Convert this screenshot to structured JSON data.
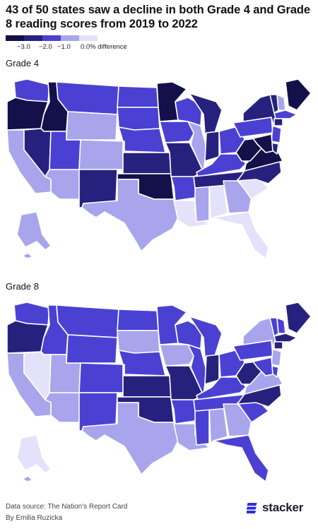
{
  "title": "43 of 50 states saw a decline in both Grade 4 and Grade 8 reading scores from 2019 to 2022",
  "legend": {
    "labels": [
      "−3.0",
      "−2.0",
      "−1.0",
      "0.0% difference"
    ],
    "colors": [
      "#14104a",
      "#27217e",
      "#4a41d3",
      "#a8a5ec",
      "#e4e2fa"
    ]
  },
  "panels": [
    {
      "label": "Grade 4",
      "colors": {
        "WA": "#4a41d3",
        "OR": "#14104a",
        "CA": "#a8a5ec",
        "ID": "#14104a",
        "NV": "#27217e",
        "AZ": "#a8a5ec",
        "UT": "#4a41d3",
        "MT": "#4a41d3",
        "WY": "#a8a5ec",
        "CO": "#a8a5ec",
        "NM": "#27217e",
        "ND": "#4a41d3",
        "SD": "#4a41d3",
        "NE": "#4a41d3",
        "KS": "#27217e",
        "OK": "#14104a",
        "TX": "#a8a5ec",
        "MN": "#14104a",
        "IA": "#4a41d3",
        "MO": "#27217e",
        "AR": "#4a41d3",
        "LA": "#e4e2fa",
        "WI": "#4a41d3",
        "IL": "#a8a5ec",
        "MS": "#a8a5ec",
        "AL": "#e4e2fa",
        "MI": "#27217e",
        "IN": "#27217e",
        "OH": "#4a41d3",
        "KY": "#4a41d3",
        "TN": "#27217e",
        "GA": "#a8a5ec",
        "FL": "#e4e2fa",
        "SC": "#e4e2fa",
        "NC": "#27217e",
        "VA": "#14104a",
        "WV": "#14104a",
        "PA": "#4a41d3",
        "NY": "#27217e",
        "ME": "#14104a",
        "VT": "#27217e",
        "NH": "#a8a5ec",
        "MA": "#4a41d3",
        "CT": "#27217e",
        "NJ": "#4a41d3",
        "DE": "#27217e",
        "MD": "#14104a",
        "AK": "#a8a5ec",
        "HI": "#a8a5ec"
      }
    },
    {
      "label": "Grade 8",
      "colors": {
        "WA": "#4a41d3",
        "OR": "#27217e",
        "CA": "#a8a5ec",
        "ID": "#4a41d3",
        "NV": "#e4e2fa",
        "AZ": "#a8a5ec",
        "UT": "#a8a5ec",
        "MT": "#4a41d3",
        "WY": "#4a41d3",
        "CO": "#4a41d3",
        "NM": "#4a41d3",
        "ND": "#4a41d3",
        "SD": "#a8a5ec",
        "NE": "#4a41d3",
        "KS": "#27217e",
        "OK": "#27217e",
        "TX": "#a8a5ec",
        "MN": "#4a41d3",
        "IA": "#a8a5ec",
        "MO": "#27217e",
        "AR": "#4a41d3",
        "LA": "#a8a5ec",
        "WI": "#4a41d3",
        "IL": "#4a41d3",
        "MS": "#4a41d3",
        "AL": "#a8a5ec",
        "MI": "#4a41d3",
        "IN": "#27217e",
        "OH": "#4a41d3",
        "KY": "#4a41d3",
        "TN": "#4a41d3",
        "GA": "#a8a5ec",
        "FL": "#4a41d3",
        "SC": "#4a41d3",
        "NC": "#27217e",
        "VA": "#a8a5ec",
        "WV": "#27217e",
        "PA": "#4a41d3",
        "NY": "#a8a5ec",
        "ME": "#27217e",
        "VT": "#4a41d3",
        "NH": "#4a41d3",
        "MA": "#27217e",
        "CT": "#27217e",
        "NJ": "#a8a5ec",
        "DE": "#4a41d3",
        "MD": "#4a41d3",
        "AK": "#e4e2fa",
        "HI": "#a8a5ec"
      }
    }
  ],
  "footer": {
    "source": "Data source: The Nation's Report Card",
    "byline": "By Emilia Ruzicka"
  },
  "logo": {
    "text": "stacker",
    "icon": "stacker-stripes-icon"
  }
}
